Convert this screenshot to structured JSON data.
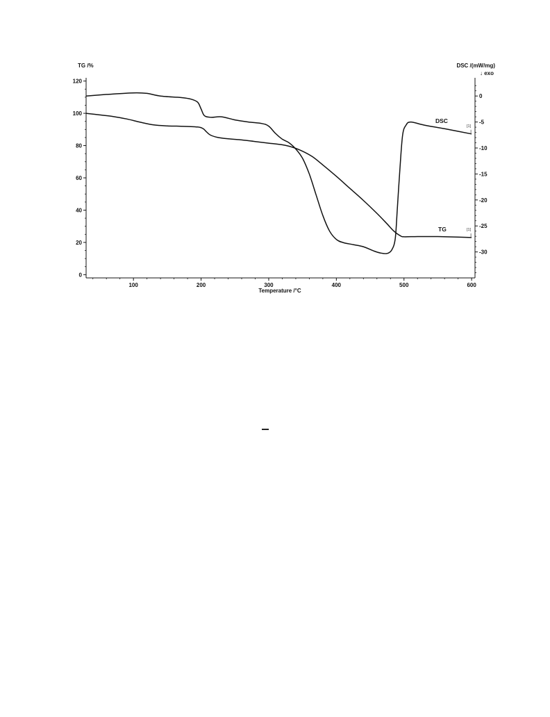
{
  "chart_data": {
    "type": "line",
    "x_axis": {
      "label": "Temperature /°C",
      "range": [
        30,
        605
      ],
      "ticks": [
        100,
        200,
        300,
        400,
        500,
        600
      ]
    },
    "y_axis_left": {
      "label": "TG /%",
      "range": [
        -2,
        122
      ],
      "ticks": [
        0,
        20,
        40,
        60,
        80,
        100,
        120
      ]
    },
    "y_axis_right": {
      "label": "DSC /(mW/mg)",
      "sublabel": "↓ exo",
      "range": [
        -35,
        3.5
      ],
      "ticks": [
        0,
        -5,
        -10,
        -15,
        -20,
        -25,
        -30
      ]
    },
    "series": [
      {
        "name": "DSC",
        "axis": "right",
        "end_marker": "[1]",
        "points": [
          [
            30,
            0.0
          ],
          [
            60,
            0.3
          ],
          [
            100,
            0.6
          ],
          [
            120,
            0.5
          ],
          [
            140,
            0.0
          ],
          [
            170,
            -0.3
          ],
          [
            185,
            -0.6
          ],
          [
            195,
            -1.2
          ],
          [
            200,
            -2.5
          ],
          [
            205,
            -3.8
          ],
          [
            215,
            -4.1
          ],
          [
            230,
            -4.0
          ],
          [
            250,
            -4.6
          ],
          [
            270,
            -5.0
          ],
          [
            290,
            -5.3
          ],
          [
            300,
            -5.8
          ],
          [
            310,
            -7.2
          ],
          [
            320,
            -8.3
          ],
          [
            330,
            -9.0
          ],
          [
            340,
            -10.2
          ],
          [
            350,
            -12.0
          ],
          [
            360,
            -15.0
          ],
          [
            370,
            -19.0
          ],
          [
            380,
            -23.0
          ],
          [
            390,
            -26.0
          ],
          [
            400,
            -27.6
          ],
          [
            410,
            -28.2
          ],
          [
            425,
            -28.6
          ],
          [
            440,
            -29.0
          ],
          [
            455,
            -29.8
          ],
          [
            465,
            -30.2
          ],
          [
            475,
            -30.3
          ],
          [
            482,
            -29.6
          ],
          [
            487,
            -27.5
          ],
          [
            490,
            -22.0
          ],
          [
            494,
            -14.0
          ],
          [
            498,
            -7.5
          ],
          [
            503,
            -5.6
          ],
          [
            510,
            -5.0
          ],
          [
            530,
            -5.6
          ],
          [
            560,
            -6.3
          ],
          [
            600,
            -7.3
          ]
        ]
      },
      {
        "name": "TG",
        "axis": "left",
        "end_marker": "[1]",
        "points": [
          [
            30,
            100.0
          ],
          [
            50,
            99.0
          ],
          [
            70,
            98.0
          ],
          [
            90,
            96.5
          ],
          [
            110,
            94.5
          ],
          [
            130,
            92.8
          ],
          [
            150,
            92.2
          ],
          [
            170,
            92.0
          ],
          [
            195,
            91.5
          ],
          [
            203,
            90.5
          ],
          [
            208,
            88.5
          ],
          [
            214,
            86.5
          ],
          [
            225,
            85.0
          ],
          [
            240,
            84.2
          ],
          [
            260,
            83.5
          ],
          [
            280,
            82.5
          ],
          [
            300,
            81.5
          ],
          [
            320,
            80.5
          ],
          [
            335,
            79.0
          ],
          [
            350,
            76.5
          ],
          [
            365,
            73.0
          ],
          [
            380,
            68.0
          ],
          [
            400,
            61.0
          ],
          [
            420,
            53.5
          ],
          [
            440,
            46.0
          ],
          [
            460,
            38.0
          ],
          [
            475,
            31.5
          ],
          [
            485,
            27.0
          ],
          [
            495,
            24.0
          ],
          [
            500,
            23.5
          ],
          [
            520,
            23.6
          ],
          [
            550,
            23.6
          ],
          [
            580,
            23.3
          ],
          [
            600,
            23.0
          ]
        ]
      }
    ],
    "grid": false,
    "legend": "inline labels near right end of each curve"
  }
}
